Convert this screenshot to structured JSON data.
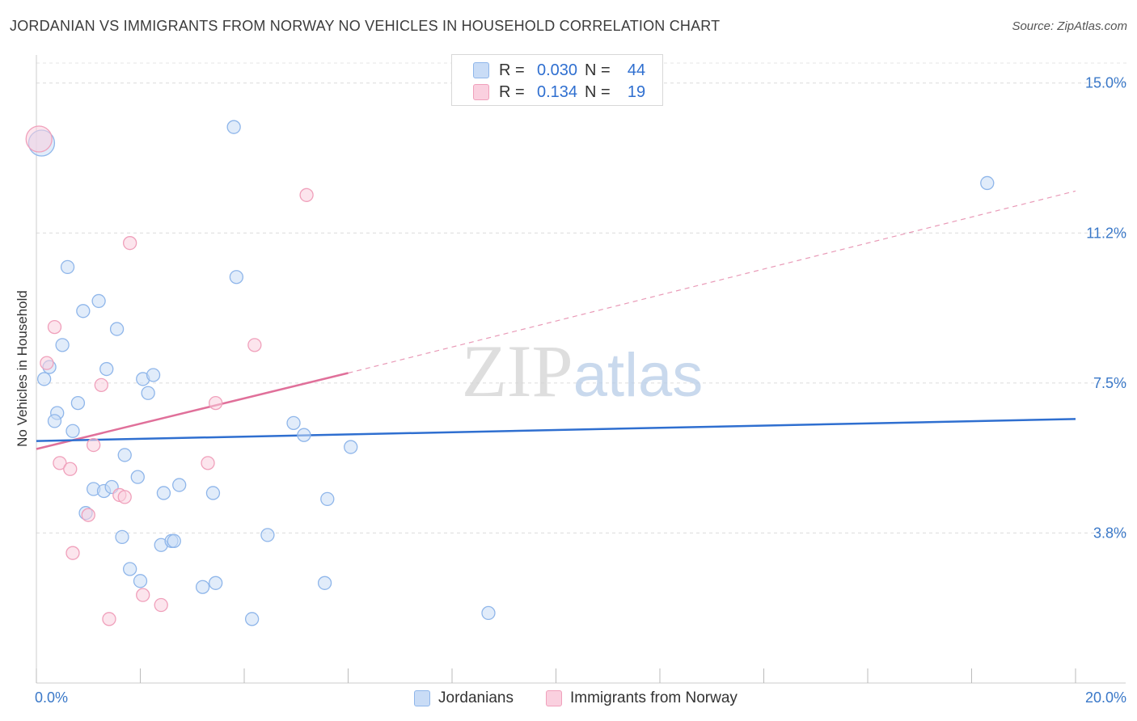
{
  "chart_data": {
    "type": "scatter",
    "title": "JORDANIAN VS IMMIGRANTS FROM NORWAY NO VEHICLES IN HOUSEHOLD CORRELATION CHART",
    "source": "Source: ZipAtlas.com",
    "ylabel": "No Vehicles in Household",
    "xlabel": "",
    "xlim": [
      0,
      20
    ],
    "ylim": [
      0,
      15.5
    ],
    "x_tick_labels": {
      "min": "0.0%",
      "max": "20.0%"
    },
    "y_ticks": [
      {
        "value": 3.75,
        "label": "3.8%"
      },
      {
        "value": 7.5,
        "label": "7.5%"
      },
      {
        "value": 11.25,
        "label": "11.2%"
      },
      {
        "value": 15.0,
        "label": "15.0%"
      }
    ],
    "grid": true,
    "watermark": "ZIPatlas",
    "legend": {
      "rows": [
        {
          "r_label": "R =",
          "r_value": "0.030",
          "n_label": "N =",
          "n_value": "44"
        },
        {
          "r_label": "R =",
          "r_value": "0.134",
          "n_label": "N =",
          "n_value": "19"
        }
      ]
    },
    "series": [
      {
        "name": "Jordanians",
        "color": "#8fb6ea",
        "fill": "#c9dcf6",
        "line_color": "#2f6fd0",
        "trend": {
          "x0": 0,
          "y0": 6.05,
          "x1": 20,
          "y1": 6.6
        },
        "points": [
          [
            0.1,
            13.5
          ],
          [
            3.8,
            13.9
          ],
          [
            18.3,
            12.5
          ],
          [
            0.6,
            10.4
          ],
          [
            3.85,
            10.15
          ],
          [
            1.2,
            9.55
          ],
          [
            0.9,
            9.3
          ],
          [
            1.55,
            8.85
          ],
          [
            0.5,
            8.45
          ],
          [
            0.25,
            7.9
          ],
          [
            0.15,
            7.6
          ],
          [
            1.35,
            7.85
          ],
          [
            2.05,
            7.6
          ],
          [
            2.25,
            7.7
          ],
          [
            2.15,
            7.25
          ],
          [
            0.8,
            7.0
          ],
          [
            0.4,
            6.75
          ],
          [
            0.35,
            6.55
          ],
          [
            0.7,
            6.3
          ],
          [
            4.95,
            6.5
          ],
          [
            5.15,
            6.2
          ],
          [
            6.05,
            5.9
          ],
          [
            1.7,
            5.7
          ],
          [
            1.95,
            5.15
          ],
          [
            2.75,
            4.95
          ],
          [
            1.1,
            4.85
          ],
          [
            1.3,
            4.8
          ],
          [
            1.45,
            4.9
          ],
          [
            2.45,
            4.75
          ],
          [
            3.4,
            4.75
          ],
          [
            5.6,
            4.6
          ],
          [
            0.95,
            4.25
          ],
          [
            1.65,
            3.65
          ],
          [
            4.45,
            3.7
          ],
          [
            2.4,
            3.45
          ],
          [
            2.6,
            3.55
          ],
          [
            2.65,
            3.55
          ],
          [
            1.8,
            2.85
          ],
          [
            2.0,
            2.55
          ],
          [
            3.45,
            2.5
          ],
          [
            5.55,
            2.5
          ],
          [
            3.2,
            2.4
          ],
          [
            8.7,
            1.75
          ],
          [
            4.15,
            1.6
          ]
        ]
      },
      {
        "name": "Immigrants from Norway",
        "color": "#f0a0bb",
        "fill": "#fad0df",
        "line_color": "#e0709a",
        "trend": {
          "x0": 0,
          "y0": 5.85,
          "x1": 6,
          "y1": 7.75
        },
        "trend_ext": {
          "x0": 6,
          "y0": 7.75,
          "x1": 20,
          "y1": 12.3
        },
        "points": [
          [
            0.05,
            13.6
          ],
          [
            5.2,
            12.2
          ],
          [
            1.8,
            11.0
          ],
          [
            0.35,
            8.9
          ],
          [
            4.2,
            8.45
          ],
          [
            0.2,
            8.0
          ],
          [
            1.25,
            7.45
          ],
          [
            3.45,
            7.0
          ],
          [
            1.1,
            5.95
          ],
          [
            0.45,
            5.5
          ],
          [
            0.65,
            5.35
          ],
          [
            3.3,
            5.5
          ],
          [
            1.6,
            4.7
          ],
          [
            1.7,
            4.65
          ],
          [
            1.0,
            4.2
          ],
          [
            0.7,
            3.25
          ],
          [
            2.05,
            2.2
          ],
          [
            2.4,
            1.95
          ],
          [
            1.4,
            1.6
          ]
        ]
      }
    ]
  }
}
